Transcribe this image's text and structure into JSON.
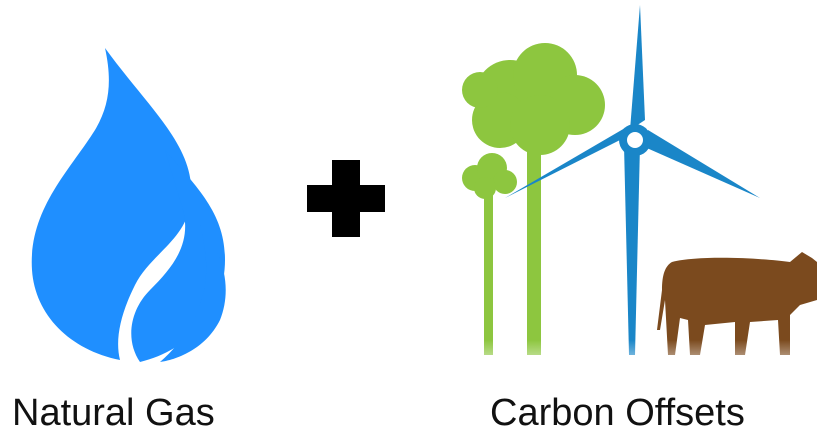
{
  "labels": {
    "left": "Natural Gas",
    "right": "Carbon Offsets"
  }
}
